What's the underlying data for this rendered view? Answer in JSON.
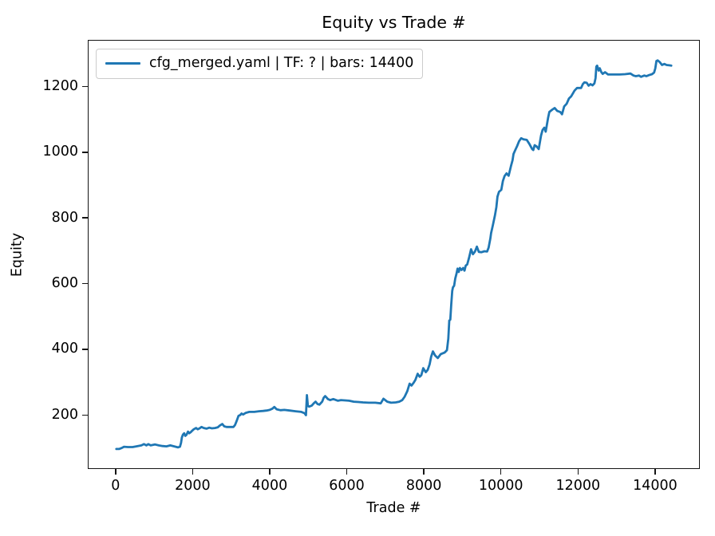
{
  "figure": {
    "title": "Equity vs Trade #",
    "xlabel": "Trade #",
    "ylabel": "Equity",
    "legend": {
      "label": "cfg_merged.yaml | TF: ? | bars: 14400",
      "line_color": "#1f77b4",
      "edge_color": "#cccccc"
    }
  },
  "chart_data": {
    "type": "line",
    "title": "Equity vs Trade #",
    "xlabel": "Trade #",
    "ylabel": "Equity",
    "xlim": [
      -720,
      15120
    ],
    "ylim": [
      43,
      1342
    ],
    "xticks": [
      0,
      2000,
      4000,
      6000,
      8000,
      10000,
      12000,
      14000
    ],
    "yticks": [
      200,
      400,
      600,
      800,
      1000,
      1200
    ],
    "grid": false,
    "legend_position": "upper left",
    "line_color": "#1f77b4",
    "background": "#ffffff",
    "series": [
      {
        "name": "cfg_merged.yaml | TF: ? | bars: 14400",
        "points": [
          [
            0,
            99
          ],
          [
            70,
            99
          ],
          [
            140,
            102
          ],
          [
            200,
            106
          ],
          [
            300,
            105
          ],
          [
            420,
            105
          ],
          [
            520,
            107
          ],
          [
            650,
            110
          ],
          [
            720,
            114
          ],
          [
            780,
            110
          ],
          [
            830,
            114
          ],
          [
            890,
            110
          ],
          [
            1000,
            113
          ],
          [
            1100,
            110
          ],
          [
            1200,
            108
          ],
          [
            1300,
            107
          ],
          [
            1400,
            110
          ],
          [
            1500,
            107
          ],
          [
            1600,
            104
          ],
          [
            1650,
            106
          ],
          [
            1680,
            118
          ],
          [
            1700,
            134
          ],
          [
            1730,
            143
          ],
          [
            1760,
            147
          ],
          [
            1790,
            139
          ],
          [
            1820,
            142
          ],
          [
            1860,
            152
          ],
          [
            1890,
            147
          ],
          [
            1930,
            150
          ],
          [
            1970,
            155
          ],
          [
            2010,
            159
          ],
          [
            2070,
            163
          ],
          [
            2110,
            159
          ],
          [
            2160,
            162
          ],
          [
            2210,
            166
          ],
          [
            2270,
            163
          ],
          [
            2340,
            161
          ],
          [
            2410,
            164
          ],
          [
            2480,
            162
          ],
          [
            2560,
            163
          ],
          [
            2630,
            165
          ],
          [
            2690,
            171
          ],
          [
            2750,
            175
          ],
          [
            2800,
            168
          ],
          [
            2860,
            166
          ],
          [
            2950,
            166
          ],
          [
            3040,
            166
          ],
          [
            3080,
            172
          ],
          [
            3110,
            181
          ],
          [
            3140,
            190
          ],
          [
            3170,
            200
          ],
          [
            3210,
            202
          ],
          [
            3250,
            207
          ],
          [
            3290,
            204
          ],
          [
            3360,
            209
          ],
          [
            3450,
            212
          ],
          [
            3580,
            212
          ],
          [
            3700,
            214
          ],
          [
            3810,
            215
          ],
          [
            3900,
            216
          ],
          [
            3980,
            218
          ],
          [
            4050,
            222
          ],
          [
            4100,
            227
          ],
          [
            4160,
            220
          ],
          [
            4260,
            217
          ],
          [
            4360,
            218
          ],
          [
            4500,
            216
          ],
          [
            4650,
            214
          ],
          [
            4800,
            212
          ],
          [
            4880,
            208
          ],
          [
            4920,
            202
          ],
          [
            4945,
            263
          ],
          [
            4970,
            231
          ],
          [
            5000,
            228
          ],
          [
            5070,
            231
          ],
          [
            5130,
            239
          ],
          [
            5170,
            243
          ],
          [
            5220,
            236
          ],
          [
            5270,
            234
          ],
          [
            5340,
            243
          ],
          [
            5380,
            255
          ],
          [
            5420,
            260
          ],
          [
            5460,
            255
          ],
          [
            5490,
            251
          ],
          [
            5550,
            248
          ],
          [
            5630,
            251
          ],
          [
            5750,
            246
          ],
          [
            5830,
            248
          ],
          [
            5940,
            247
          ],
          [
            6040,
            246
          ],
          [
            6160,
            243
          ],
          [
            6280,
            242
          ],
          [
            6400,
            241
          ],
          [
            6550,
            240
          ],
          [
            6720,
            240
          ],
          [
            6860,
            238
          ],
          [
            6930,
            252
          ],
          [
            7030,
            243
          ],
          [
            7130,
            240
          ],
          [
            7250,
            241
          ],
          [
            7340,
            243
          ],
          [
            7420,
            248
          ],
          [
            7480,
            258
          ],
          [
            7550,
            275
          ],
          [
            7610,
            298
          ],
          [
            7660,
            292
          ],
          [
            7710,
            300
          ],
          [
            7760,
            309
          ],
          [
            7820,
            328
          ],
          [
            7870,
            319
          ],
          [
            7915,
            324
          ],
          [
            7965,
            345
          ],
          [
            8030,
            333
          ],
          [
            8080,
            340
          ],
          [
            8130,
            357
          ],
          [
            8170,
            380
          ],
          [
            8215,
            396
          ],
          [
            8270,
            384
          ],
          [
            8340,
            376
          ],
          [
            8420,
            388
          ],
          [
            8520,
            393
          ],
          [
            8580,
            400
          ],
          [
            8615,
            435
          ],
          [
            8640,
            490
          ],
          [
            8665,
            493
          ],
          [
            8690,
            540
          ],
          [
            8715,
            580
          ],
          [
            8735,
            591
          ],
          [
            8765,
            596
          ],
          [
            8795,
            618
          ],
          [
            8825,
            632
          ],
          [
            8855,
            648
          ],
          [
            8885,
            638
          ],
          [
            8915,
            650
          ],
          [
            8955,
            644
          ],
          [
            9000,
            650
          ],
          [
            9035,
            642
          ],
          [
            9065,
            657
          ],
          [
            9105,
            661
          ],
          [
            9155,
            682
          ],
          [
            9205,
            707
          ],
          [
            9255,
            692
          ],
          [
            9305,
            700
          ],
          [
            9355,
            715
          ],
          [
            9405,
            699
          ],
          [
            9475,
            698
          ],
          [
            9550,
            701
          ],
          [
            9620,
            700
          ],
          [
            9660,
            712
          ],
          [
            9705,
            740
          ],
          [
            9725,
            756
          ],
          [
            9770,
            780
          ],
          [
            9825,
            811
          ],
          [
            9860,
            835
          ],
          [
            9890,
            867
          ],
          [
            9930,
            882
          ],
          [
            9990,
            888
          ],
          [
            10030,
            915
          ],
          [
            10075,
            930
          ],
          [
            10125,
            938
          ],
          [
            10180,
            931
          ],
          [
            10240,
            960
          ],
          [
            10280,
            978
          ],
          [
            10305,
            997
          ],
          [
            10355,
            1010
          ],
          [
            10400,
            1021
          ],
          [
            10450,
            1036
          ],
          [
            10505,
            1045
          ],
          [
            10560,
            1042
          ],
          [
            10650,
            1040
          ],
          [
            10715,
            1028
          ],
          [
            10790,
            1012
          ],
          [
            10820,
            1009
          ],
          [
            10855,
            1024
          ],
          [
            10905,
            1020
          ],
          [
            10960,
            1012
          ],
          [
            11020,
            1053
          ],
          [
            11060,
            1070
          ],
          [
            11105,
            1077
          ],
          [
            11140,
            1065
          ],
          [
            11170,
            1084
          ],
          [
            11205,
            1108
          ],
          [
            11235,
            1125
          ],
          [
            11310,
            1132
          ],
          [
            11375,
            1137
          ],
          [
            11440,
            1128
          ],
          [
            11520,
            1125
          ],
          [
            11565,
            1118
          ],
          [
            11620,
            1142
          ],
          [
            11685,
            1150
          ],
          [
            11745,
            1166
          ],
          [
            11805,
            1173
          ],
          [
            11890,
            1190
          ],
          [
            11955,
            1198
          ],
          [
            12060,
            1198
          ],
          [
            12105,
            1210
          ],
          [
            12145,
            1215
          ],
          [
            12205,
            1214
          ],
          [
            12255,
            1205
          ],
          [
            12305,
            1210
          ],
          [
            12355,
            1206
          ],
          [
            12405,
            1212
          ],
          [
            12435,
            1228
          ],
          [
            12455,
            1263
          ],
          [
            12475,
            1266
          ],
          [
            12515,
            1251
          ],
          [
            12545,
            1258
          ],
          [
            12585,
            1246
          ],
          [
            12620,
            1241
          ],
          [
            12680,
            1246
          ],
          [
            12760,
            1239
          ],
          [
            12900,
            1239
          ],
          [
            13060,
            1239
          ],
          [
            13200,
            1240
          ],
          [
            13340,
            1242
          ],
          [
            13420,
            1236
          ],
          [
            13480,
            1234
          ],
          [
            13560,
            1236
          ],
          [
            13615,
            1232
          ],
          [
            13700,
            1236
          ],
          [
            13755,
            1234
          ],
          [
            13820,
            1237
          ],
          [
            13900,
            1240
          ],
          [
            13955,
            1245
          ],
          [
            13985,
            1258
          ],
          [
            14015,
            1280
          ],
          [
            14045,
            1282
          ],
          [
            14100,
            1277
          ],
          [
            14160,
            1268
          ],
          [
            14220,
            1271
          ],
          [
            14280,
            1268
          ],
          [
            14350,
            1267
          ],
          [
            14400,
            1266
          ]
        ]
      }
    ]
  }
}
